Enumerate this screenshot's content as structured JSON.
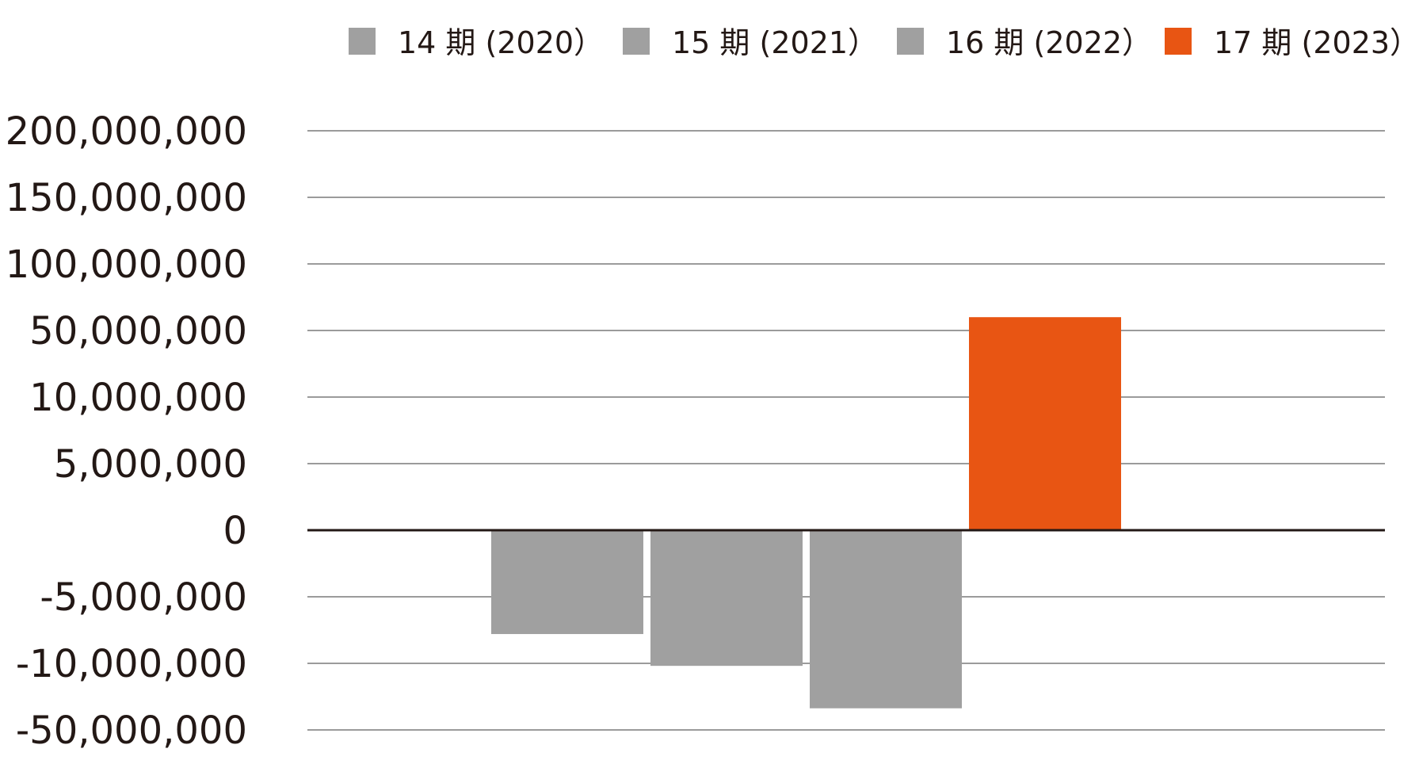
{
  "chart_data": {
    "type": "bar",
    "title": "",
    "xlabel": "",
    "ylabel": "",
    "y_scale": "categorical (non-linear, equal spacing between labeled ticks)",
    "y_ticks": [
      "200,000,000",
      "150,000,000",
      "100,000,000",
      "50,000,000",
      "10,000,000",
      "5,000,000",
      "0",
      "-5,000,000",
      "-10,000,000",
      "-50,000,000"
    ],
    "y_tick_values": [
      200000000,
      150000000,
      100000000,
      50000000,
      10000000,
      5000000,
      0,
      -5000000,
      -10000000,
      -50000000
    ],
    "ylim": [
      -50000000,
      200000000
    ],
    "grid": true,
    "legend": {
      "position": "top"
    },
    "series": [
      {
        "name": "14 期 (2020）",
        "value": -7800000,
        "color": "#a0a0a0"
      },
      {
        "name": "15 期 (2021）",
        "value": -11500000,
        "color": "#a0a0a0"
      },
      {
        "name": "16 期 (2022）",
        "value": -37000000,
        "color": "#a0a0a0"
      },
      {
        "name": "17 期 (2023）",
        "value": 60000000,
        "color": "#e85513"
      }
    ]
  }
}
